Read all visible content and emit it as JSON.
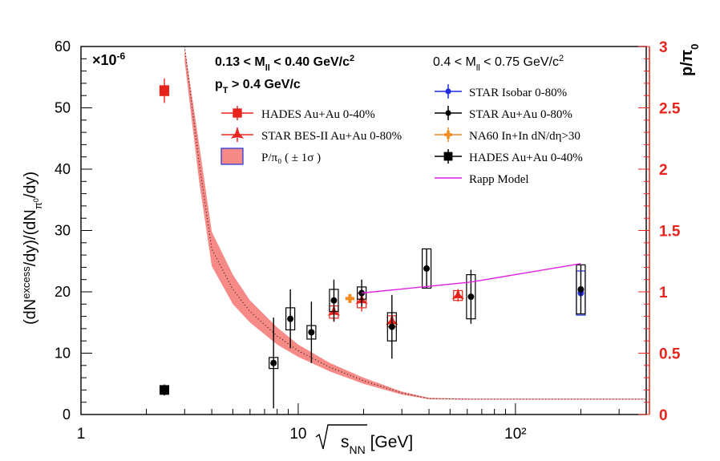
{
  "chart_data": {
    "type": "scatter",
    "title": "",
    "xlabel": "√s_NN [GeV]",
    "ylabel": "(dN^excess/dy)/(dN_π0/dy)",
    "y2label": "p/π_0",
    "xscale": "log",
    "xlim": [
      1,
      400
    ],
    "ylim": [
      0,
      60
    ],
    "y2lim": [
      0,
      3
    ],
    "y_multiplier": "×10^-6",
    "x_ticks": [
      "1",
      "10",
      "10²"
    ],
    "y_ticks": [
      "0",
      "10",
      "20",
      "30",
      "40",
      "50",
      "60"
    ],
    "y2_ticks": [
      "0",
      "0.5",
      "1",
      "1.5",
      "2",
      "2.5",
      "3"
    ],
    "grid": false,
    "legend_position": "top",
    "annotations": {
      "mass_low": "0.13 < M_ll < 0.40 GeV/c²",
      "pt_cut": "p_T > 0.4 GeV/c",
      "mass_high": "0.4 < M_ll < 0.75 GeV/c²"
    },
    "legend_left": [
      {
        "label": "HADES Au+Au 0-40%",
        "marker": "square",
        "color": "#e8231c"
      },
      {
        "label": "STAR BES-II Au+Au 0-80%",
        "marker": "star",
        "color": "#e8231c"
      },
      {
        "label": "P/π₀ ( ± 1σ )",
        "marker": "band",
        "color": "#f58a87"
      }
    ],
    "legend_right": [
      {
        "label": "STAR Isobar 0-80%",
        "marker": "circle",
        "color": "#1f2fe0"
      },
      {
        "label": "STAR Au+Au 0-80%",
        "marker": "circle",
        "color": "#000000"
      },
      {
        "label": "NA60 In+In dN/dη>30",
        "marker": "cross",
        "color": "#f28a1e"
      },
      {
        "label": "HADES Au+Au 0-40%",
        "marker": "square",
        "color": "#000000"
      },
      {
        "label": "Rapp Model",
        "marker": "line",
        "color": "#e020e0"
      }
    ],
    "series": [
      {
        "name": "HADES Au+Au 0-40%",
        "mass_range": "low",
        "color": "#e8231c",
        "marker": "square",
        "points": [
          {
            "x": 2.42,
            "y": 52.8,
            "err": 2.0,
            "sys": 0.8
          }
        ]
      },
      {
        "name": "STAR BES-II Au+Au 0-80%",
        "mass_range": "low",
        "color": "#e8231c",
        "marker": "star",
        "points": [
          {
            "x": 14.6,
            "y": 16.7,
            "err": 1.6,
            "sys": 1.0
          },
          {
            "x": 19.6,
            "y": 18.6,
            "err": 1.8,
            "sys": 1.2
          },
          {
            "x": 27.0,
            "y": 15.2,
            "err": 1.4,
            "sys": 0.9
          },
          {
            "x": 54.4,
            "y": 19.4,
            "err": 1.0,
            "sys": 0.8
          }
        ]
      },
      {
        "name": "STAR Isobar 0-80%",
        "mass_range": "high",
        "color": "#1f2fe0",
        "marker": "circle",
        "points": [
          {
            "x": 200,
            "y": 19.8,
            "err": 0.6,
            "sys": 3.6
          }
        ]
      },
      {
        "name": "STAR Au+Au 0-80%",
        "mass_range": "high",
        "color": "#000000",
        "marker": "circle",
        "points": [
          {
            "x": 7.7,
            "y": 8.4,
            "err": 7.4,
            "sys": 0.9
          },
          {
            "x": 9.2,
            "y": 15.6,
            "err": 4.8,
            "sys": 1.8
          },
          {
            "x": 11.5,
            "y": 13.4,
            "err": 5.0,
            "sys": 1.1
          },
          {
            "x": 14.6,
            "y": 18.6,
            "err": 3.4,
            "sys": 1.8
          },
          {
            "x": 19.6,
            "y": 19.8,
            "err": 2.2,
            "sys": 1.0
          },
          {
            "x": 27.0,
            "y": 14.3,
            "err": 5.2,
            "sys": 2.3
          },
          {
            "x": 39.0,
            "y": 23.8,
            "err": 3.2,
            "sys": 3.2
          },
          {
            "x": 62.4,
            "y": 19.2,
            "err": 4.4,
            "sys": 3.6
          },
          {
            "x": 200,
            "y": 20.4,
            "err": 4.0,
            "sys": 4.0
          }
        ]
      },
      {
        "name": "NA60 In+In dN/dη>30",
        "mass_range": "high",
        "color": "#f28a1e",
        "marker": "cross",
        "points": [
          {
            "x": 17.3,
            "y": 18.9,
            "err": 0.6,
            "sys": 0
          }
        ]
      },
      {
        "name": "HADES Au+Au 0-40%",
        "mass_range": "high",
        "color": "#000000",
        "marker": "square",
        "points": [
          {
            "x": 2.42,
            "y": 4.0,
            "err": 0.9,
            "sys": 0
          }
        ]
      },
      {
        "name": "Rapp Model",
        "mass_range": "high",
        "color": "#e020e0",
        "marker": "line",
        "points": [
          {
            "x": 19.6,
            "y": 19.8
          },
          {
            "x": 62.4,
            "y": 21.6
          },
          {
            "x": 200,
            "y": 24.6
          }
        ]
      }
    ],
    "p_over_pi0_band": {
      "axis": "right",
      "x": [
        3.0,
        3.5,
        4.0,
        5.0,
        6.0,
        8.0,
        10.0,
        14.0,
        20.0,
        30.0,
        40.0,
        62.4,
        100,
        200,
        400
      ],
      "y": [
        3.0,
        2.05,
        1.35,
        1.02,
        0.84,
        0.64,
        0.52,
        0.385,
        0.275,
        0.175,
        0.13,
        0.125,
        0.125,
        0.125,
        0.125
      ],
      "sigma": [
        0.12,
        0.15,
        0.14,
        0.12,
        0.09,
        0.07,
        0.05,
        0.035,
        0.025,
        0.012,
        0.006,
        0.004,
        0.004,
        0.004,
        0.004
      ]
    }
  }
}
